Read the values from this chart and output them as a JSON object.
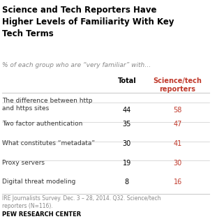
{
  "title": "Science and Tech Reporters Have\nHigher Levels of Familiarity With Key\nTech Terms",
  "subtitle": "% of each group who are “very familiar” with…",
  "col_headers": [
    "Total",
    "Science/tech\nreporters"
  ],
  "rows": [
    {
      "label": "The difference between http\nand https sites",
      "total": 44,
      "sci_tech": 58
    },
    {
      "label": "Two factor authentication",
      "total": 35,
      "sci_tech": 47
    },
    {
      "label": "What constitutes “metadata”",
      "total": 30,
      "sci_tech": 41
    },
    {
      "label": "Proxy servers",
      "total": 19,
      "sci_tech": 30
    },
    {
      "label": "Digital threat modeling",
      "total": 8,
      "sci_tech": 16
    }
  ],
  "footnote": "IRE Journalists Survey. Dec. 3 – 28, 2014. Q32. Science/tech\nreporters (N=116).",
  "source": "PEW RESEARCH CENTER",
  "title_color": "#000000",
  "subtitle_color": "#888888",
  "header_color": "#000000",
  "total_color": "#000000",
  "sci_tech_color": "#c0392b",
  "label_color": "#333333",
  "footnote_color": "#888888",
  "source_color": "#000000",
  "bg_color": "#ffffff",
  "line_color": "#cccccc"
}
